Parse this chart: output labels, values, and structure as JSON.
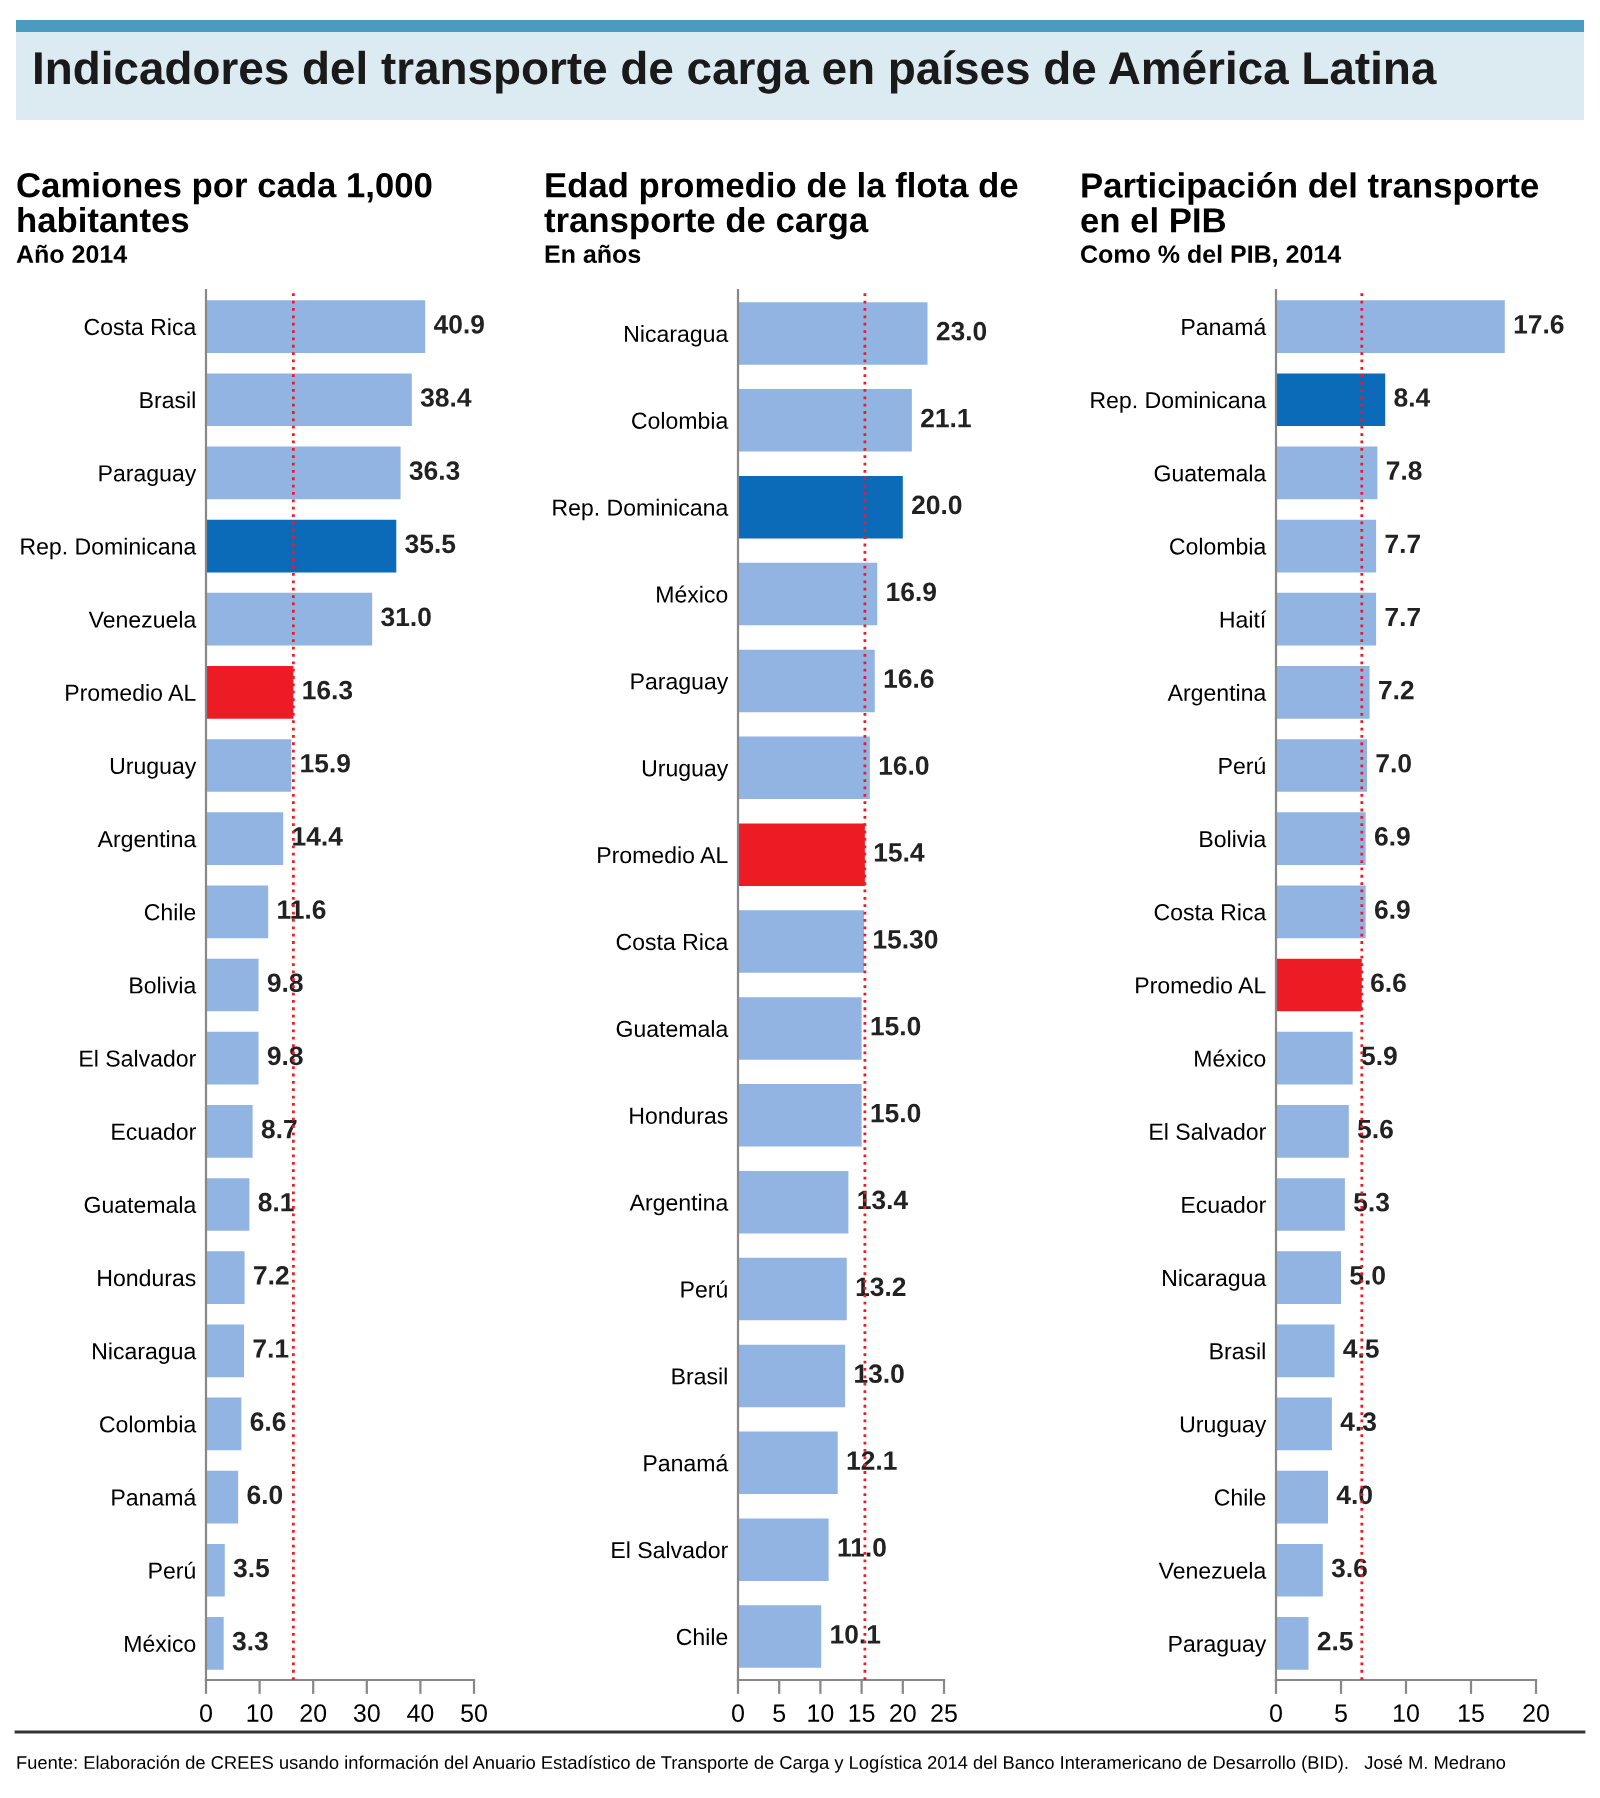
{
  "chart_data": [
    {
      "type": "bar",
      "orientation": "horizontal",
      "title": "Camiones por cada 1,000 habitantes",
      "subtitle": "Año 2014",
      "annotations": [
        "Indicadores del transporte de carga en países de América Latina"
      ],
      "categories": [
        "Costa Rica",
        "Brasil",
        "Paraguay",
        "Rep. Dominicana",
        "Venezuela",
        "Promedio AL",
        "Uruguay",
        "Argentina",
        "Chile",
        "Bolivia",
        "El Salvador",
        "Ecuador",
        "Guatemala",
        "Honduras",
        "Nicaragua",
        "Colombia",
        "Panamá",
        "Perú",
        "México"
      ],
      "values": [
        40.9,
        38.4,
        36.3,
        35.5,
        31.0,
        16.3,
        15.9,
        14.4,
        11.6,
        9.8,
        9.8,
        8.7,
        8.1,
        7.2,
        7.1,
        6.6,
        6.0,
        3.5,
        3.3
      ],
      "value_labels": [
        "40.9",
        "38.4",
        "36.3",
        "35.5",
        "31.0",
        "16.3",
        "15.9",
        "14.4",
        "11.6",
        "9.8",
        "9.8",
        "8.7",
        "8.1",
        "7.2",
        "7.1",
        "6.6",
        "6.0",
        "3.5",
        "3.3"
      ],
      "colors": [
        "#92b4e3",
        "#92b4e3",
        "#92b4e3",
        "#0b6bb8",
        "#92b4e3",
        "#ed1c24",
        "#92b4e3",
        "#92b4e3",
        "#92b4e3",
        "#92b4e3",
        "#92b4e3",
        "#92b4e3",
        "#92b4e3",
        "#92b4e3",
        "#92b4e3",
        "#92b4e3",
        "#92b4e3",
        "#92b4e3",
        "#92b4e3"
      ],
      "xlim": [
        0,
        50
      ],
      "xticks": [
        0,
        10,
        20,
        30,
        40,
        50
      ],
      "grid": false,
      "ref_lines": [
        {
          "axis": "x",
          "value": 16.3,
          "color": "#ed1c24",
          "line_style": "dotted"
        }
      ]
    },
    {
      "type": "bar",
      "orientation": "horizontal",
      "title": "Edad promedio de la flota de transporte de carga",
      "subtitle": "En años",
      "categories": [
        "Nicaragua",
        "Colombia",
        "Rep. Dominicana",
        "México",
        "Paraguay",
        "Uruguay",
        "Promedio AL",
        "Costa Rica",
        "Guatemala",
        "Honduras",
        "Argentina",
        "Perú",
        "Brasil",
        "Panamá",
        "El Salvador",
        "Chile"
      ],
      "values": [
        23.0,
        21.1,
        20.0,
        16.9,
        16.6,
        16.0,
        15.4,
        15.3,
        15.0,
        15.0,
        13.4,
        13.2,
        13.0,
        12.1,
        11.0,
        10.1
      ],
      "value_labels": [
        "23.0",
        "21.1",
        "20.0",
        "16.9",
        "16.6",
        "16.0",
        "15.4",
        "15.30",
        "15.0",
        "15.0",
        "13.4",
        "13.2",
        "13.0",
        "12.1",
        "11.0",
        "10.1"
      ],
      "colors": [
        "#92b4e3",
        "#92b4e3",
        "#0b6bb8",
        "#92b4e3",
        "#92b4e3",
        "#92b4e3",
        "#ed1c24",
        "#92b4e3",
        "#92b4e3",
        "#92b4e3",
        "#92b4e3",
        "#92b4e3",
        "#92b4e3",
        "#92b4e3",
        "#92b4e3",
        "#92b4e3"
      ],
      "xlim": [
        0,
        25
      ],
      "xticks": [
        0,
        5,
        10,
        15,
        20,
        25
      ],
      "grid": false,
      "ref_lines": [
        {
          "axis": "x",
          "value": 15.4,
          "color": "#ed1c24",
          "line_style": "dotted"
        }
      ]
    },
    {
      "type": "bar",
      "orientation": "horizontal",
      "title": "Participación del transporte en el PIB",
      "subtitle": "Como % del PIB, 2014",
      "annotations": [
        "Fuente: Elaboración de CREES usando información del Anuario Estadístico de Transporte de Carga y Logística 2014 del Banco Interamericano de Desarrollo (BID).   José M. Medrano"
      ],
      "categories": [
        "Panamá",
        "Rep. Dominicana",
        "Guatemala",
        "Colombia",
        "Haití",
        "Argentina",
        "Perú",
        "Bolivia",
        "Costa Rica",
        "Promedio AL",
        "México",
        "El Salvador",
        "Ecuador",
        "Nicaragua",
        "Brasil",
        "Uruguay",
        "Chile",
        "Venezuela",
        "Paraguay"
      ],
      "values": [
        17.6,
        8.4,
        7.8,
        7.7,
        7.7,
        7.2,
        7.0,
        6.9,
        6.9,
        6.6,
        5.9,
        5.6,
        5.3,
        5.0,
        4.5,
        4.3,
        4.0,
        3.6,
        2.5
      ],
      "value_labels": [
        "17.6",
        "8.4",
        "7.8",
        "7.7",
        "7.7",
        "7.2",
        "7.0",
        "6.9",
        "6.9",
        "6.6",
        "5.9",
        "5.6",
        "5.3",
        "5.0",
        "4.5",
        "4.3",
        "4.0",
        "3.6",
        "2.5"
      ],
      "colors": [
        "#92b4e3",
        "#0b6bb8",
        "#92b4e3",
        "#92b4e3",
        "#92b4e3",
        "#92b4e3",
        "#92b4e3",
        "#92b4e3",
        "#92b4e3",
        "#ed1c24",
        "#92b4e3",
        "#92b4e3",
        "#92b4e3",
        "#92b4e3",
        "#92b4e3",
        "#92b4e3",
        "#92b4e3",
        "#92b4e3",
        "#92b4e3"
      ],
      "xlim": [
        0,
        20
      ],
      "xticks": [
        0,
        5,
        10,
        15,
        20
      ],
      "grid": false,
      "ref_lines": [
        {
          "axis": "x",
          "value": 6.6,
          "color": "#ed1c24",
          "line_style": "dotted"
        }
      ]
    }
  ]
}
